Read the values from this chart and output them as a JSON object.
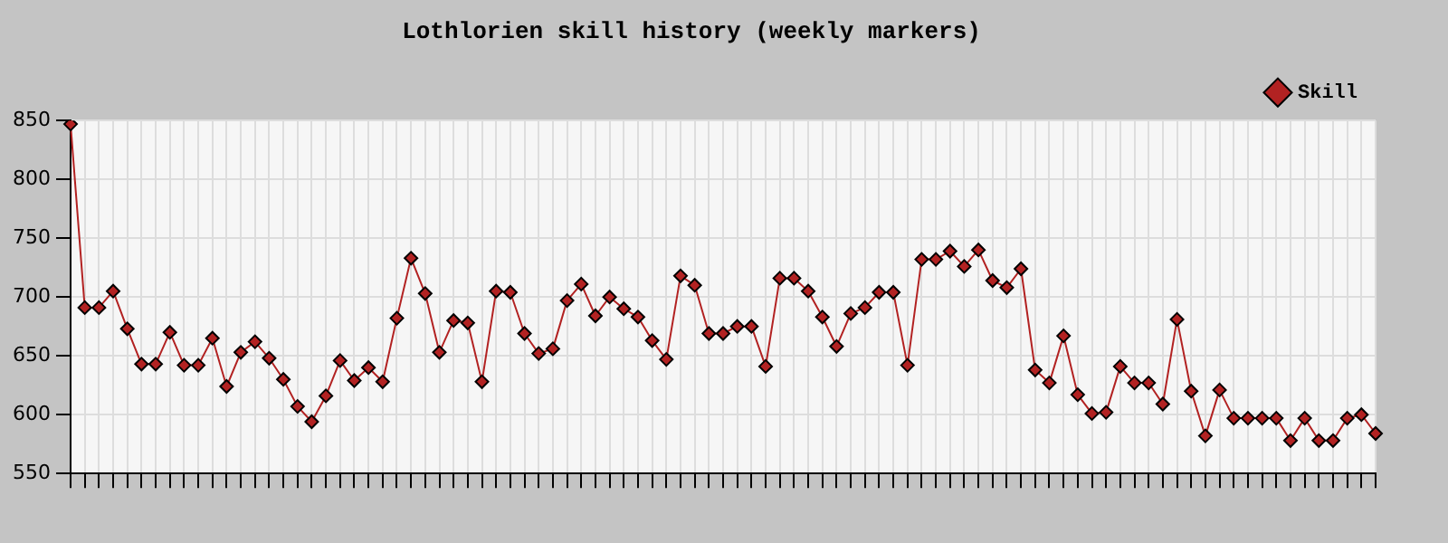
{
  "chart_data": {
    "type": "line",
    "title": "Lothlorien skill history (weekly markers)",
    "categories": [
      null,
      null,
      null,
      null,
      null,
      null,
      null,
      null,
      null,
      null,
      null,
      null,
      null,
      null,
      null,
      null,
      null,
      null,
      null,
      null,
      null,
      null,
      null,
      null,
      null,
      null,
      null,
      null,
      null,
      null,
      null,
      null,
      null,
      null,
      null,
      null,
      null,
      null,
      null,
      null,
      null,
      null,
      null,
      null,
      null,
      null,
      null,
      null,
      null,
      null,
      null,
      null,
      null,
      null,
      null,
      null,
      null,
      null,
      null,
      null,
      null,
      null,
      null,
      null,
      null,
      null,
      null,
      null,
      null,
      null,
      null,
      null,
      null,
      null,
      null,
      null,
      null,
      null,
      null,
      null,
      null,
      null,
      null,
      null,
      null,
      null,
      null,
      null,
      null,
      null,
      null,
      null,
      null
    ],
    "series": [
      {
        "name": "Skill",
        "color": "#b22222",
        "values": [
          847,
          691,
          691,
          705,
          673,
          643,
          643,
          670,
          642,
          642,
          665,
          624,
          653,
          662,
          648,
          630,
          607,
          594,
          616,
          646,
          629,
          640,
          628,
          682,
          733,
          703,
          653,
          680,
          678,
          628,
          705,
          704,
          669,
          652,
          656,
          697,
          711,
          684,
          700,
          690,
          683,
          663,
          647,
          718,
          710,
          669,
          669,
          675,
          675,
          641,
          716,
          716,
          705,
          683,
          658,
          686,
          691,
          704,
          704,
          642,
          732,
          732,
          739,
          726,
          740,
          714,
          708,
          724,
          638,
          627,
          667,
          617,
          601,
          602,
          641,
          627,
          627,
          609,
          681,
          620,
          582,
          621,
          597,
          597,
          597,
          597,
          578,
          597,
          578,
          578,
          597,
          600,
          584
        ]
      }
    ],
    "ylim": [
      550,
      850
    ],
    "yticks": [
      550,
      600,
      650,
      700,
      750,
      800,
      850
    ],
    "grid": true,
    "legend": "top right",
    "marker": "diamond",
    "line_style": "solid"
  }
}
